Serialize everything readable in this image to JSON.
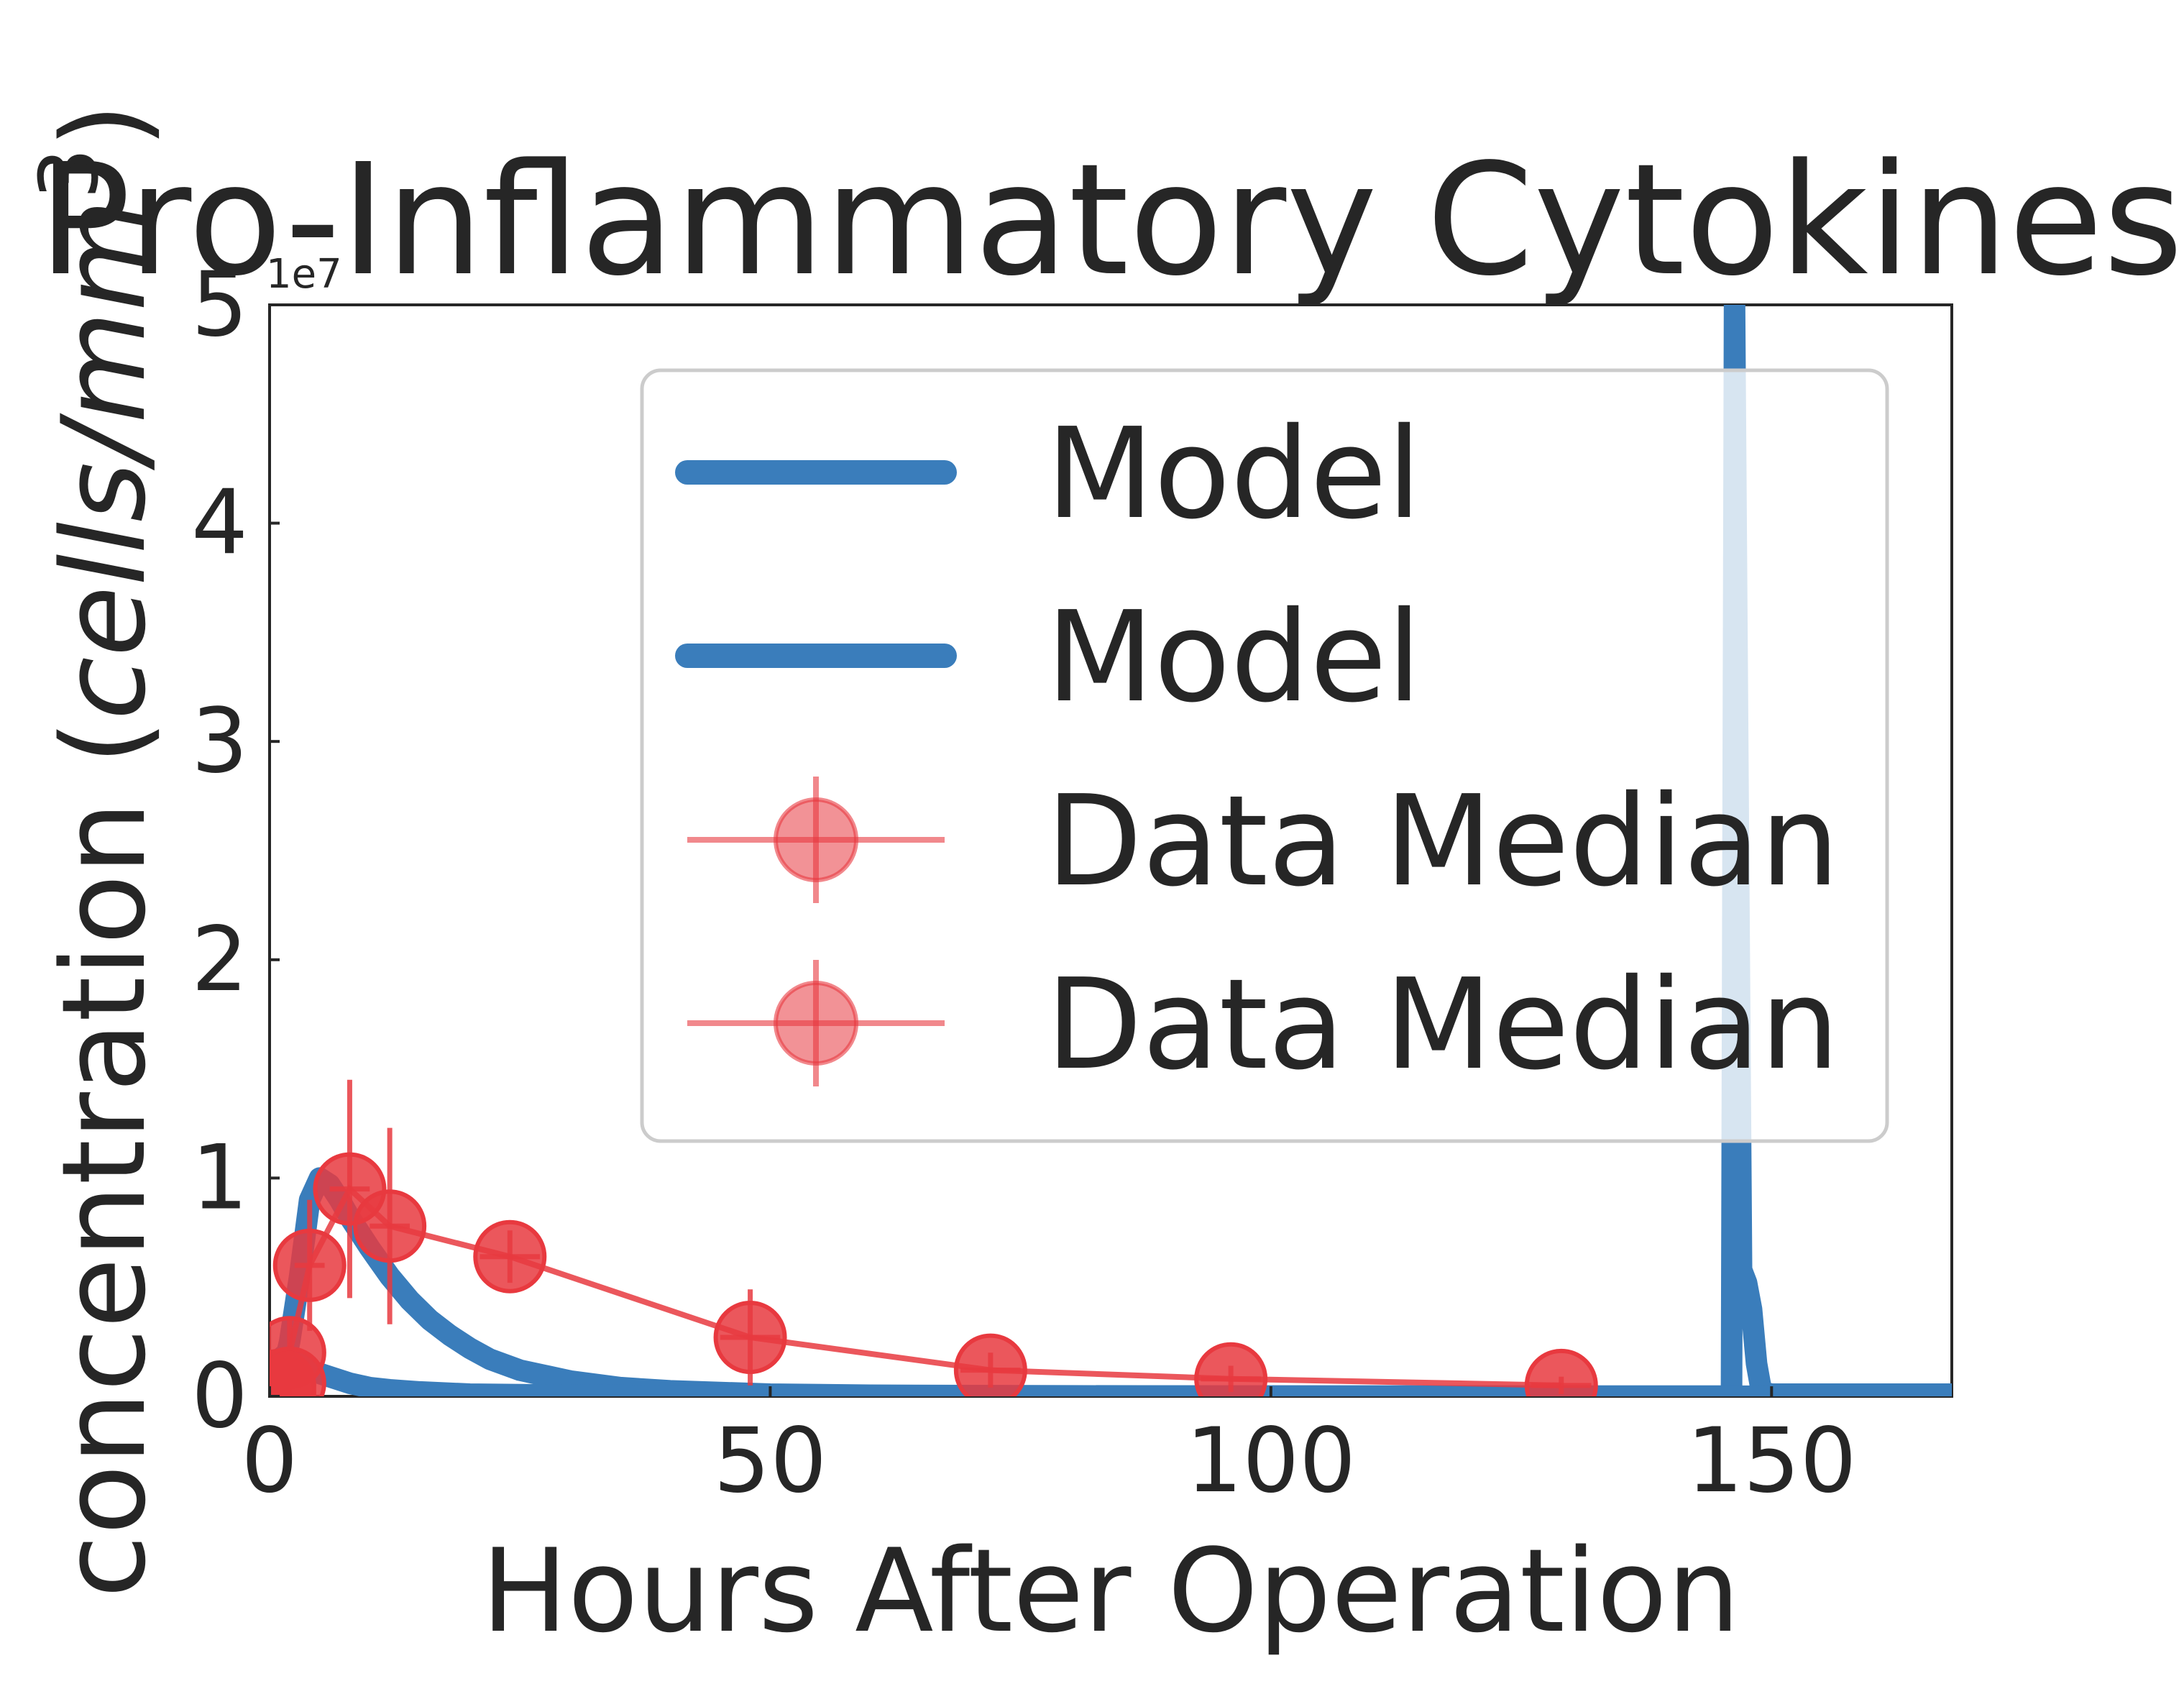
{
  "chart_data": {
    "type": "line",
    "title": "Pro-Inflammatory Cytokines",
    "xlabel": "Hours After Operation",
    "ylabel": {
      "prefix": "concentration (",
      "italic": "cells/mm",
      "sup": "3",
      "suffix": ")"
    },
    "y_offset_label": "1e7",
    "xlim": [
      0,
      168
    ],
    "ylim": [
      0,
      5
    ],
    "x_ticks": [
      0,
      50,
      100,
      150
    ],
    "x_tick_labels": [
      "0",
      "50",
      "100",
      "150"
    ],
    "y_ticks": [
      0,
      1,
      2,
      3,
      4,
      5
    ],
    "y_tick_labels": [
      "0",
      "1",
      "2",
      "3",
      "4",
      "5"
    ],
    "grid": false,
    "legend": {
      "placement": "top-right",
      "entries": [
        "Model",
        "Model",
        "Data Median",
        "Data Median"
      ]
    },
    "colors": {
      "model": "#3a7dbb",
      "data": "#e8393f"
    },
    "series": [
      {
        "name": "Model",
        "kind": "model",
        "x": [
          0,
          1,
          2,
          3,
          4,
          5,
          6,
          7,
          8,
          10,
          12,
          14,
          16,
          18,
          20,
          22,
          25,
          30,
          35,
          40,
          50,
          60,
          80,
          100,
          120,
          140,
          145,
          146,
          146.3,
          147,
          147.5,
          148,
          148.5,
          149,
          150,
          168
        ],
        "y": [
          0,
          0.05,
          0.25,
          0.55,
          0.9,
          1.0,
          0.97,
          0.9,
          0.82,
          0.68,
          0.55,
          0.44,
          0.35,
          0.28,
          0.22,
          0.17,
          0.12,
          0.07,
          0.04,
          0.025,
          0.01,
          0.005,
          0.002,
          0.001,
          0.001,
          0.001,
          0.001,
          0.001,
          5.0,
          0.58,
          0.52,
          0.4,
          0.15,
          0.02,
          0.01,
          0.01
        ]
      },
      {
        "name": "Model",
        "kind": "model",
        "x": [
          0,
          0.5,
          1,
          1.5,
          2,
          3,
          4,
          6,
          8,
          10,
          12,
          15,
          20,
          30,
          40,
          168
        ],
        "y": [
          0,
          0.1,
          0.17,
          0.19,
          0.18,
          0.15,
          0.12,
          0.09,
          0.06,
          0.04,
          0.03,
          0.02,
          0.01,
          0.005,
          0.002,
          0.0
        ]
      },
      {
        "name": "Data Median",
        "kind": "data",
        "x": [
          1,
          2,
          4,
          8,
          12,
          24,
          48,
          72,
          96,
          129
        ],
        "y": [
          0.05,
          0.2,
          0.6,
          0.95,
          0.78,
          0.64,
          0.27,
          0.12,
          0.08,
          0.05
        ],
        "yerr": [
          0.05,
          0.15,
          0.3,
          0.5,
          0.45,
          0.12,
          0.22,
          0.08,
          0.06,
          0.04
        ],
        "xerr": [
          1,
          1,
          1.5,
          2,
          2,
          3,
          3,
          3,
          3,
          3
        ]
      },
      {
        "name": "Data Median",
        "kind": "data",
        "x": [
          1,
          2
        ],
        "y": [
          0.02,
          0.06
        ],
        "yerr": [
          0.03,
          0.05
        ],
        "xerr": [
          1,
          1
        ]
      }
    ]
  }
}
